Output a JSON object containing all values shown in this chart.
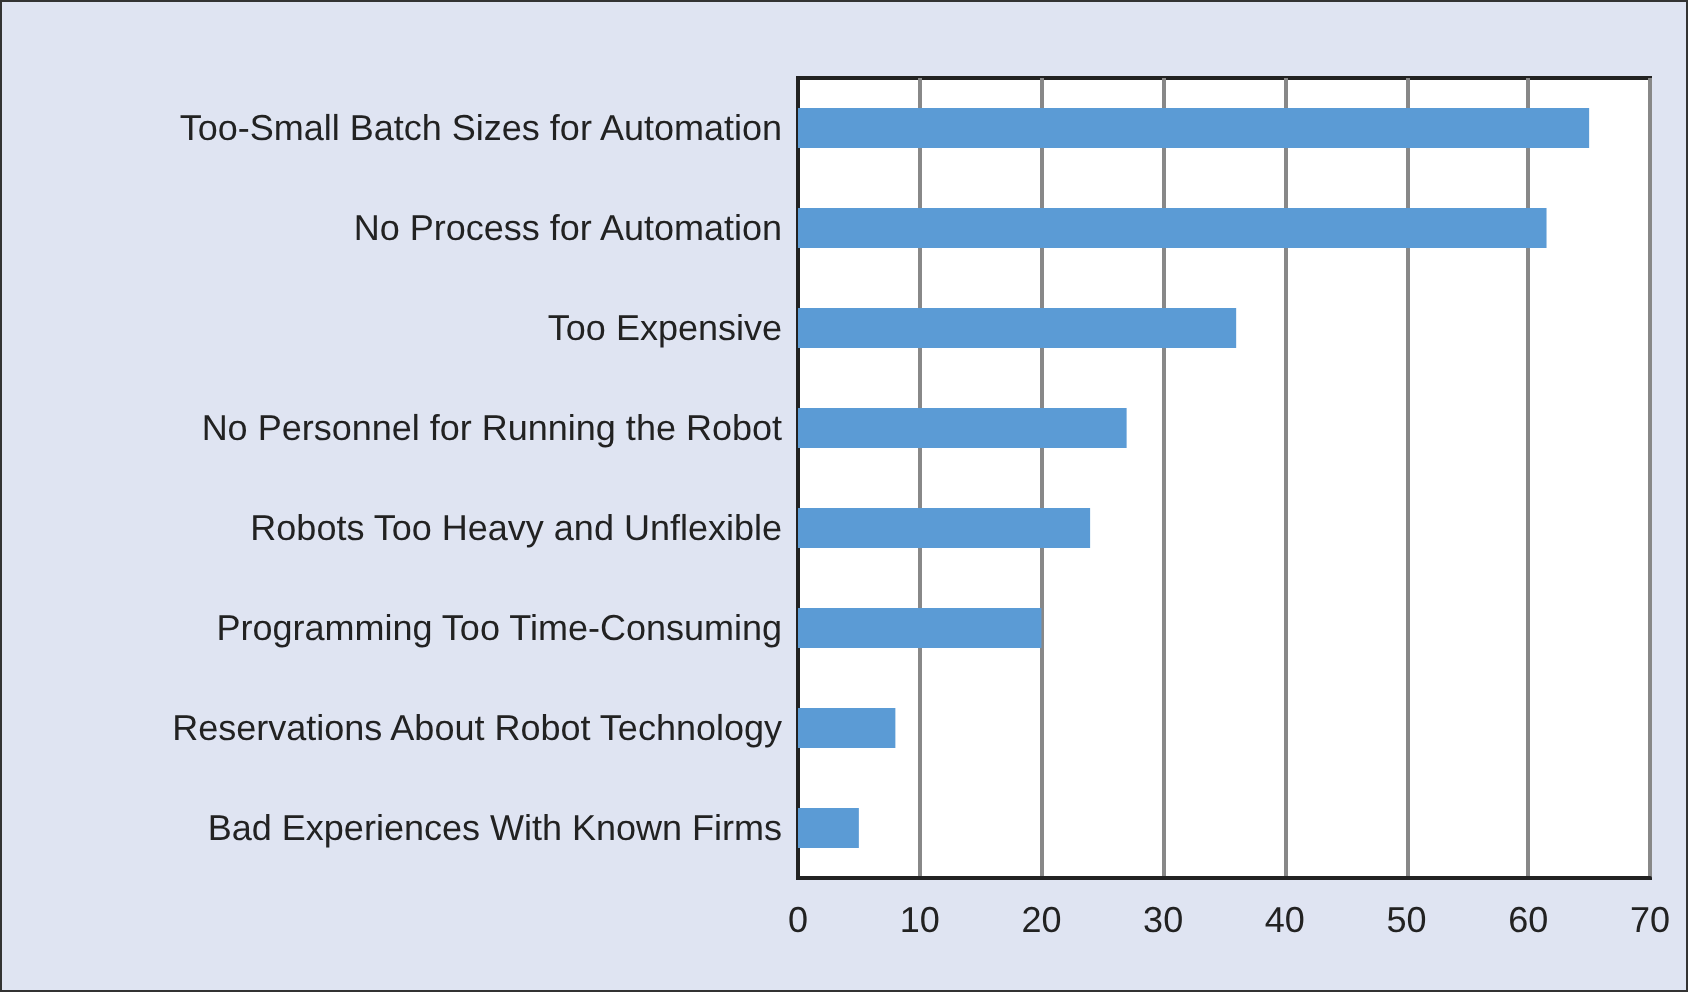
{
  "chart_data": {
    "type": "bar",
    "orientation": "horizontal",
    "categories": [
      "Too-Small Batch Sizes for Automation",
      "No Process for Automation",
      "Too Expensive",
      "No Personnel for Running the Robot",
      "Robots Too Heavy and Unflexible",
      "Programming Too Time-Consuming",
      "Reservations About Robot Technology",
      "Bad Experiences With Known Firms"
    ],
    "values": [
      65,
      61.5,
      36,
      27,
      24,
      20,
      8,
      5
    ],
    "color": "#5b9bd5",
    "xlim": [
      0,
      70
    ],
    "xticks": [
      0,
      10,
      20,
      30,
      40,
      50,
      60,
      70
    ],
    "grid": "x"
  }
}
